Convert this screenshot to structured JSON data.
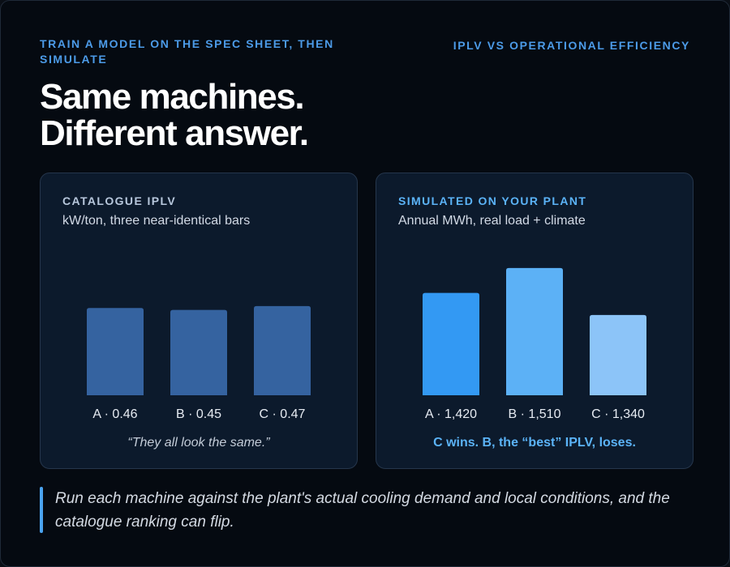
{
  "eyebrow": "TRAIN A MODEL ON THE SPEC SHEET, THEN SIMULATE",
  "top_right": "IPLV VS OPERATIONAL EFFICIENCY",
  "headline": {
    "line1": "Same machines.",
    "line2": "Different answer."
  },
  "left_panel": {
    "title": "CATALOGUE IPLV",
    "subtitle": "kW/ton, three near-identical bars",
    "caption": "“They all look the same.”"
  },
  "right_panel": {
    "title": "SIMULATED ON YOUR PLANT",
    "subtitle": "Annual MWh, real load + climate",
    "caption": "C wins. B, the “best” IPLV, loses."
  },
  "footer_note": "Run each machine against the plant's actual cooling demand and local conditions, and the catalogue ranking can flip.",
  "chart_data": [
    {
      "type": "bar",
      "title": "CATALOGUE IPLV",
      "subtitle": "kW/ton, three near-identical bars",
      "categories": [
        "A",
        "B",
        "C"
      ],
      "values": [
        0.46,
        0.45,
        0.47
      ],
      "data_labels": [
        "A · 0.46",
        "B · 0.45",
        "C · 0.47"
      ],
      "colors": [
        "#3563a0",
        "#3563a0",
        "#3563a0"
      ],
      "ylim": [
        0,
        0.7
      ],
      "grid": false
    },
    {
      "type": "bar",
      "title": "SIMULATED ON YOUR PLANT",
      "subtitle": "Annual MWh, real load + climate",
      "categories": [
        "A",
        "B",
        "C"
      ],
      "values": [
        1420,
        1510,
        1340
      ],
      "data_labels": [
        "A · 1,420",
        "B · 1,510",
        "C · 1,340"
      ],
      "colors": [
        "#3399f3",
        "#5cb1f6",
        "#8cc4f8"
      ],
      "ylim": [
        1050,
        1530
      ],
      "grid": false
    }
  ]
}
